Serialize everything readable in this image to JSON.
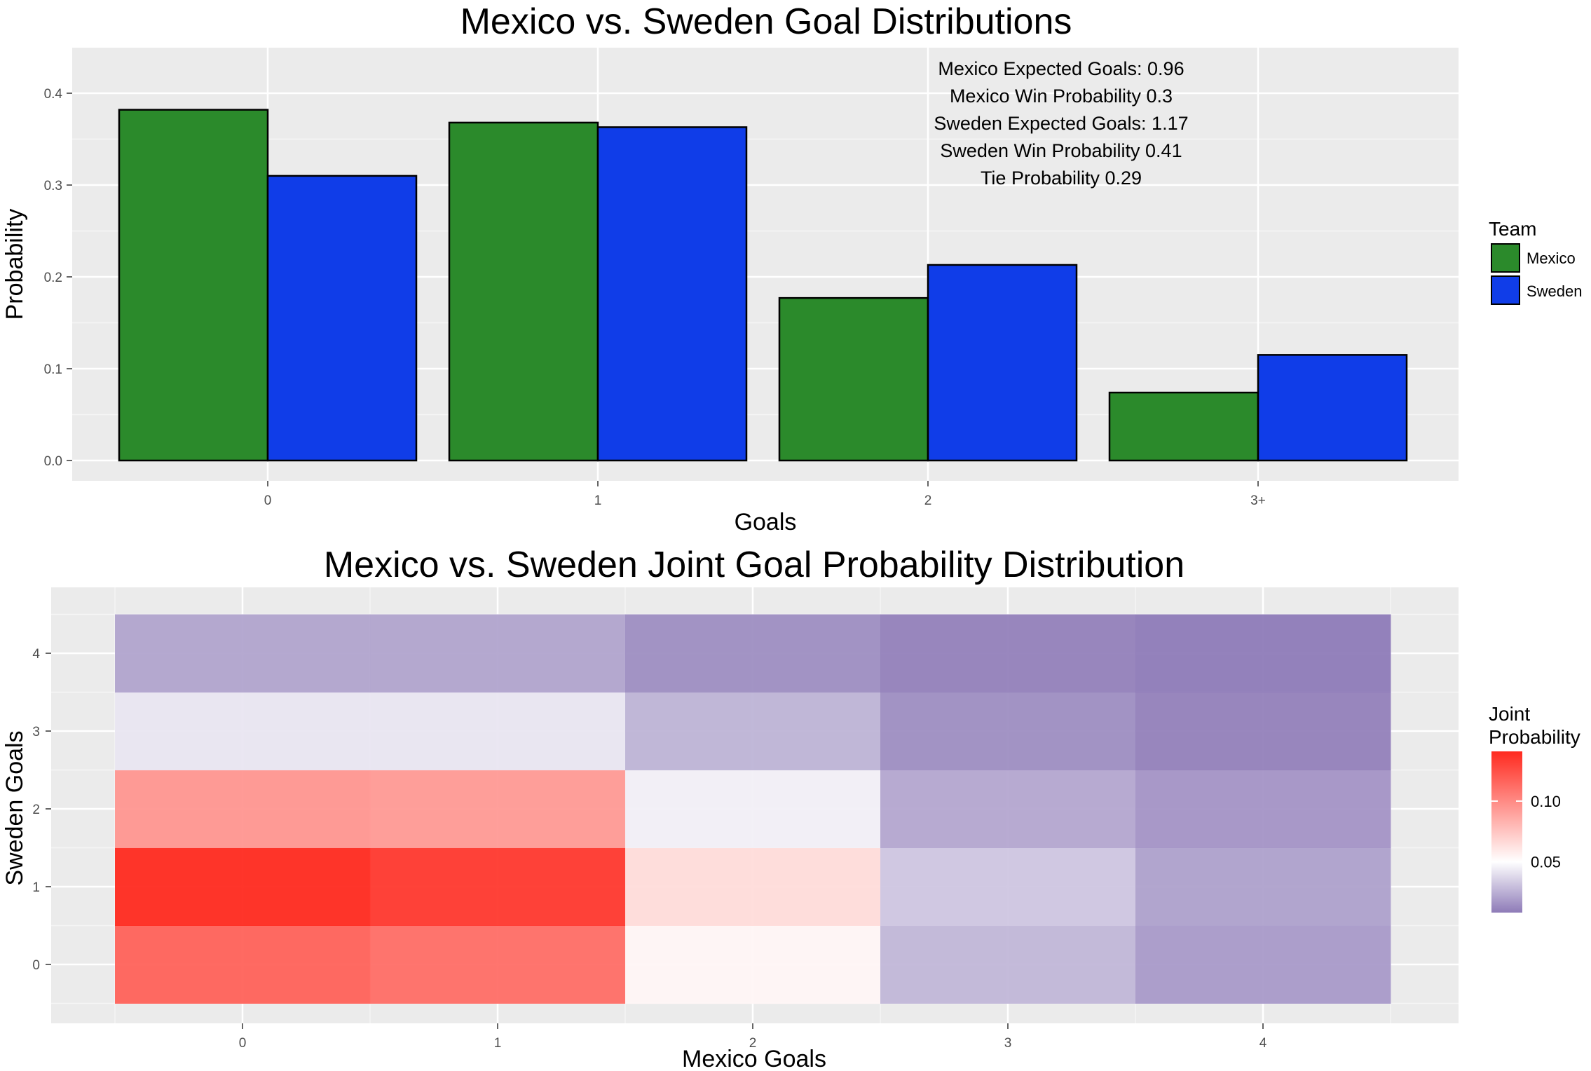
{
  "chart_data": [
    {
      "type": "bar",
      "title": "Mexico vs. Sweden Goal Distributions",
      "xlabel": "Goals",
      "ylabel": "Probability",
      "categories": [
        "0",
        "1",
        "2",
        "3+"
      ],
      "ylim": [
        0,
        0.44
      ],
      "yticks": [
        "0.0",
        "0.1",
        "0.2",
        "0.3",
        "0.4"
      ],
      "ytick_values": [
        0,
        0.1,
        0.2,
        0.3,
        0.4
      ],
      "grid": true,
      "legend_position": "right",
      "legend_title": "Team",
      "series": [
        {
          "name": "Mexico",
          "color": "#2b8a2b",
          "values": [
            0.382,
            0.368,
            0.177,
            0.074
          ]
        },
        {
          "name": "Sweden",
          "color": "#103de8",
          "values": [
            0.31,
            0.363,
            0.213,
            0.115
          ]
        }
      ],
      "annotations": [
        "Mexico Expected Goals: 0.96",
        "Mexico Win Probability 0.3",
        "Sweden Expected Goals: 1.17",
        "Sweden Win Probability 0.41",
        "Tie Probability 0.29"
      ]
    },
    {
      "type": "heatmap",
      "title": "Mexico vs. Sweden Joint Goal Probability Distribution",
      "xlabel": "Mexico Goals",
      "ylabel": "Sweden Goals",
      "x": [
        "0",
        "1",
        "2",
        "3",
        "4"
      ],
      "y": [
        "0",
        "1",
        "2",
        "3",
        "4"
      ],
      "xlim": [
        -0.75,
        4.75
      ],
      "ylim": [
        -0.75,
        4.75
      ],
      "values_by_sweden_goals": [
        [
          0.117,
          0.112,
          0.054,
          0.027,
          0.018
        ],
        [
          0.141,
          0.135,
          0.065,
          0.032,
          0.02
        ],
        [
          0.095,
          0.093,
          0.045,
          0.022,
          0.016
        ],
        [
          0.042,
          0.042,
          0.026,
          0.014,
          0.01
        ],
        [
          0.021,
          0.021,
          0.014,
          0.01,
          0.008
        ]
      ],
      "grid": true,
      "legend_position": "right",
      "legend_title": [
        "Joint",
        "Probability"
      ],
      "legend_ticks": [
        "0.10",
        "0.05"
      ],
      "legend_tick_values": [
        0.1,
        0.05
      ],
      "scale": {
        "low": 0.008,
        "mid": 0.05,
        "high": 0.141,
        "low_color": "#8e7bb8",
        "mid_color": "#ffffff",
        "high_color": "#ff2a1f"
      }
    }
  ],
  "colors": {
    "panel_bg": "#ebebeb",
    "grid_major": "#ffffff",
    "bar_outline": "#000000"
  }
}
